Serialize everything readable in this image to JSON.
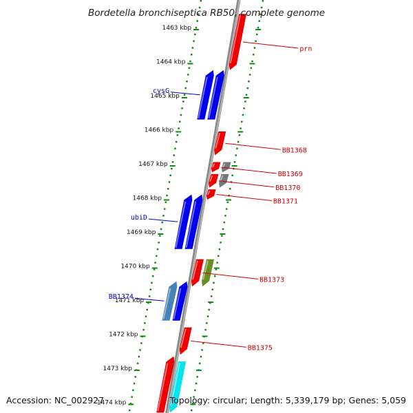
{
  "title": "Bordetella bronchiseptica RB50, complete genome",
  "footer": {
    "accession": "Accession: NC_002927",
    "topology": "Topology: circular; Length: 5,339,179 bp; Genes: 5,059"
  },
  "ruler": {
    "unit": "kbp",
    "ticks": [
      {
        "kbp": 1463,
        "label": "1463 kbp"
      },
      {
        "kbp": 1464,
        "label": "1464 kbp"
      },
      {
        "kbp": 1465,
        "label": "1465 kbp"
      },
      {
        "kbp": 1466,
        "label": "1466 kbp"
      },
      {
        "kbp": 1467,
        "label": "1467 kbp"
      },
      {
        "kbp": 1468,
        "label": "1468 kbp"
      },
      {
        "kbp": 1469,
        "label": "1469 kbp"
      },
      {
        "kbp": 1470,
        "label": "1470 kbp"
      },
      {
        "kbp": 1471,
        "label": "1471 kbp"
      },
      {
        "kbp": 1472,
        "label": "1472 kbp"
      },
      {
        "kbp": 1473,
        "label": "1473 kbp"
      },
      {
        "kbp": 1474,
        "label": "1474 kbp"
      }
    ]
  },
  "colors": {
    "minus_strand_gene": "#0000ee",
    "plus_strand_gene": "#ee0000",
    "grey_gene": "#777777",
    "olive_gene": "#6b8e23",
    "cyan_gene": "#00e5ee",
    "steel_gene": "#4682b4",
    "ruler_dots": "#118811",
    "backbone": "#8a8a8a",
    "minus_label": "#0000cc",
    "plus_label": "#cc0000"
  },
  "genes": [
    {
      "id": "prn",
      "label": "prn",
      "side": "right",
      "color": "plus_strand_gene",
      "start": 1462.6,
      "end": 1464.25,
      "lane": 1
    },
    {
      "id": "cysG-a",
      "label": "cysG",
      "side": "left",
      "color": "minus_strand_gene",
      "start": 1464.25,
      "end": 1465.7,
      "lane": -2
    },
    {
      "id": "cysG-b",
      "label": "",
      "side": "left",
      "color": "minus_strand_gene",
      "start": 1464.25,
      "end": 1465.7,
      "lane": -1
    },
    {
      "id": "BB1368",
      "label": "BB1368",
      "side": "right",
      "color": "plus_strand_gene",
      "start": 1466.05,
      "end": 1466.75,
      "lane": 1
    },
    {
      "id": "BB1369",
      "label": "BB1369",
      "side": "right",
      "color": "plus_strand_gene",
      "start": 1466.95,
      "end": 1467.25,
      "lane": 1
    },
    {
      "id": "BB1369-g",
      "label": "",
      "side": "right",
      "color": "grey_gene",
      "start": 1466.95,
      "end": 1467.25,
      "lane": 2
    },
    {
      "id": "BB1370",
      "label": "BB1370",
      "side": "right",
      "color": "plus_strand_gene",
      "start": 1467.3,
      "end": 1467.7,
      "lane": 1
    },
    {
      "id": "BB1370-g",
      "label": "",
      "side": "right",
      "color": "grey_gene",
      "start": 1467.3,
      "end": 1467.7,
      "lane": 2
    },
    {
      "id": "BB1371",
      "label": "BB1371",
      "side": "right",
      "color": "plus_strand_gene",
      "start": 1467.75,
      "end": 1468.05,
      "lane": 1
    },
    {
      "id": "ubiD-a",
      "label": "ubiD",
      "side": "left",
      "color": "minus_strand_gene",
      "start": 1467.9,
      "end": 1469.5,
      "lane": -2
    },
    {
      "id": "ubiD-b",
      "label": "",
      "side": "left",
      "color": "minus_strand_gene",
      "start": 1467.9,
      "end": 1469.5,
      "lane": -1
    },
    {
      "id": "BB1373",
      "label": "BB1373",
      "side": "right",
      "color": "plus_strand_gene",
      "start": 1469.8,
      "end": 1470.6,
      "lane": 1
    },
    {
      "id": "BB1373-o",
      "label": "",
      "side": "right",
      "color": "olive_gene",
      "start": 1469.8,
      "end": 1470.6,
      "lane": 2
    },
    {
      "id": "BB1374-a",
      "label": "BB1374",
      "side": "left",
      "color": "steel_gene",
      "start": 1470.45,
      "end": 1471.6,
      "lane": -2
    },
    {
      "id": "BB1374-b",
      "label": "",
      "side": "left",
      "color": "minus_strand_gene",
      "start": 1470.45,
      "end": 1471.6,
      "lane": -1
    },
    {
      "id": "BB1375",
      "label": "BB1375",
      "side": "right",
      "color": "plus_strand_gene",
      "start": 1471.8,
      "end": 1472.6,
      "lane": 1
    },
    {
      "id": "tail-red",
      "label": "",
      "side": "left",
      "color": "plus_strand_gene",
      "start": 1472.65,
      "end": 1474.3,
      "lane": -1
    },
    {
      "id": "tail-cyan",
      "label": "",
      "side": "right",
      "color": "cyan_gene",
      "start": 1472.8,
      "end": 1474.3,
      "lane": 1
    }
  ]
}
